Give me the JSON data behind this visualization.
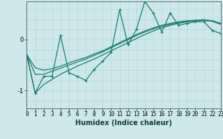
{
  "xlabel": "Humidex (Indice chaleur)",
  "ylabel": "",
  "bg_color": "#cce8eb",
  "grid_color": "#b8d4d8",
  "line_color": "#1a7a6e",
  "x_data": [
    0,
    1,
    2,
    3,
    4,
    5,
    6,
    7,
    8,
    9,
    10,
    11,
    12,
    13,
    14,
    15,
    16,
    17,
    18,
    19,
    20,
    21,
    22,
    23
  ],
  "y_main": [
    -0.3,
    -1.05,
    -0.72,
    -0.72,
    0.08,
    -0.65,
    -0.72,
    -0.8,
    -0.58,
    -0.42,
    -0.25,
    0.58,
    -0.1,
    0.2,
    0.75,
    0.52,
    0.15,
    0.52,
    0.28,
    0.32,
    0.35,
    0.35,
    0.18,
    0.12
  ],
  "y_line1": [
    -0.3,
    -1.05,
    -0.88,
    -0.78,
    -0.68,
    -0.6,
    -0.52,
    -0.45,
    -0.38,
    -0.3,
    -0.22,
    -0.14,
    -0.06,
    0.02,
    0.1,
    0.17,
    0.23,
    0.28,
    0.32,
    0.35,
    0.37,
    0.38,
    0.36,
    0.3
  ],
  "y_line2": [
    -0.3,
    -0.55,
    -0.6,
    -0.57,
    -0.52,
    -0.46,
    -0.4,
    -0.35,
    -0.28,
    -0.22,
    -0.14,
    -0.06,
    0.02,
    0.1,
    0.17,
    0.23,
    0.28,
    0.32,
    0.35,
    0.37,
    0.38,
    0.39,
    0.37,
    0.32
  ],
  "y_line3": [
    -0.3,
    -0.68,
    -0.68,
    -0.62,
    -0.56,
    -0.5,
    -0.44,
    -0.38,
    -0.31,
    -0.24,
    -0.16,
    -0.08,
    0.0,
    0.08,
    0.15,
    0.21,
    0.26,
    0.3,
    0.33,
    0.36,
    0.37,
    0.38,
    0.36,
    0.31
  ],
  "ylim": [
    -1.35,
    0.75
  ],
  "yticks": [
    -1,
    0
  ],
  "xlim": [
    0,
    23
  ],
  "title_fontsize": 7,
  "tick_fontsize": 5.5,
  "label_fontsize": 7
}
